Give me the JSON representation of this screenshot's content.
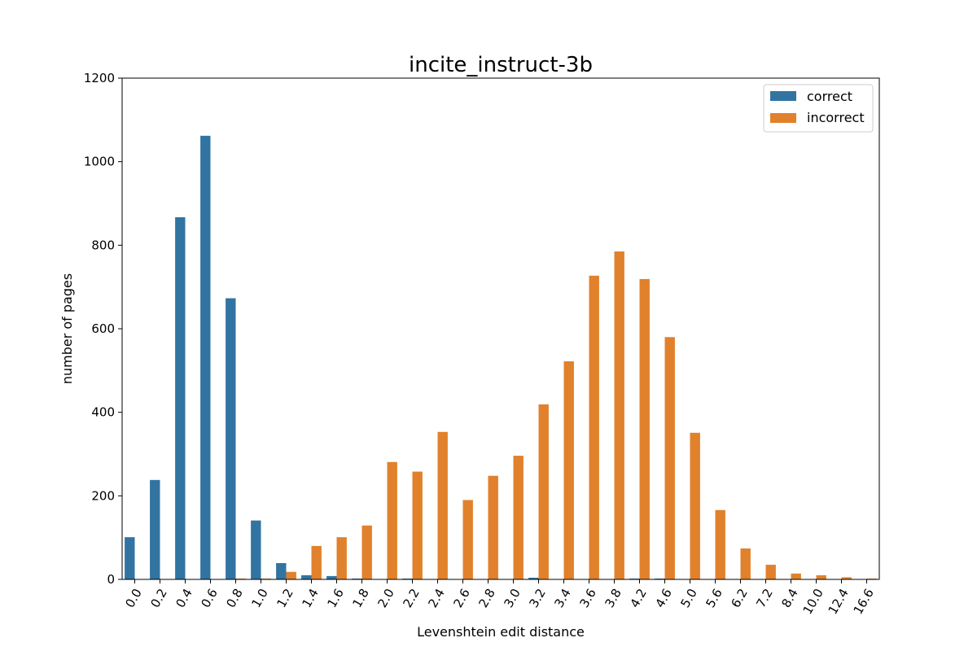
{
  "chart_data": {
    "type": "bar",
    "title": "incite_instruct-3b",
    "xlabel": "Levenshtein edit distance",
    "ylabel": "number of pages",
    "ylim": [
      0,
      1200
    ],
    "yticks": [
      0,
      200,
      400,
      600,
      800,
      1000,
      1200
    ],
    "grid": false,
    "legend_position": "top-right",
    "categories": [
      "0.0",
      "0.2",
      "0.4",
      "0.6",
      "0.8",
      "1.0",
      "1.2",
      "1.4",
      "1.6",
      "1.8",
      "2.0",
      "2.2",
      "2.4",
      "2.6",
      "2.8",
      "3.0",
      "3.2",
      "3.4",
      "3.6",
      "3.8",
      "4.2",
      "4.6",
      "5.0",
      "5.6",
      "6.2",
      "7.2",
      "8.4",
      "10.0",
      "12.4",
      "16.6"
    ],
    "series": [
      {
        "name": "correct",
        "color": "#3274a1",
        "values": [
          101,
          238,
          867,
          1062,
          673,
          141,
          39,
          10,
          8,
          2,
          0,
          2,
          0,
          0,
          0,
          0,
          4,
          0,
          0,
          0,
          2,
          2,
          0,
          0,
          0,
          0,
          0,
          0,
          0,
          0
        ]
      },
      {
        "name": "incorrect",
        "color": "#e1812c",
        "values": [
          0,
          0,
          0,
          0,
          2,
          2,
          18,
          80,
          101,
          129,
          281,
          258,
          353,
          190,
          248,
          296,
          419,
          522,
          727,
          785,
          719,
          580,
          351,
          166,
          74,
          35,
          14,
          10,
          5,
          2
        ]
      }
    ]
  }
}
